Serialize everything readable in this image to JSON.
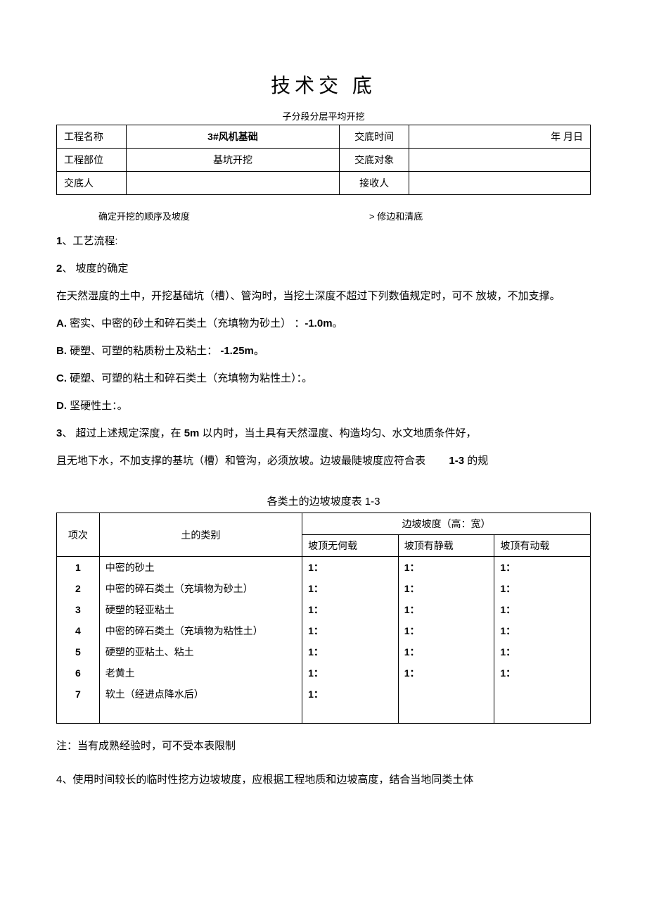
{
  "title": "技术交 底",
  "subtitle": "子分段分层平均开挖",
  "info": {
    "r1c1": "工程名称",
    "r1c2": "3#风机基础",
    "r1c3": "交底时间",
    "r1c4": "年 月日",
    "r2c1": "工程部位",
    "r2c2": "基坑开挖",
    "r2c3": "交底对象",
    "r2c4": "",
    "r3c1": "交底人",
    "r3c2": "",
    "r3c3": "接收人",
    "r3c4": ""
  },
  "smallrow": {
    "left": "确定开挖的顺序及坡度",
    "right": "> 修边和清底"
  },
  "body": {
    "p1a": "1",
    "p1b": "、工艺流程:",
    "p2a": "2",
    "p2b": "、  坡度的确定",
    "p3": "在天然湿度的土中，开挖基础坑（槽）、管沟时，当挖土深度不超过下列数值规定时，可不 放坡，不加支撑。",
    "pAa": "A.",
    "pAb": " 密实、中密的砂土和碎石类土（充填物为砂土） ：",
    "pAc": "-1.0m",
    "pAd": "。",
    "pBa": "B.",
    "pBb": " 硬塑、可塑的粘质粉土及粘土： ",
    "pBc": "-1.25m",
    "pBd": "。",
    "pCa": "C.",
    "pCb": " 硬塑、可塑的粘土和碎石类土（充填物为粘性土）：。",
    "pDa": "D.",
    "pDb": " 坚硬性土：。",
    "p4a": "3",
    "p4b": "、  超过上述规定深度，在 ",
    "p4c": "5m",
    "p4d": " 以内时，当土具有天然湿度、构造均匀、水文地质条件好，",
    "p5a": "且无地下水，不加支撑的基坑（槽）和管沟，必须放坡。边坡最陡坡度应符合表",
    "p5b": "1-3",
    "p5c": " 的规"
  },
  "table2title": "各类土的边坡坡度表 1-3",
  "table2": {
    "h_span": "边坡坡度（高：宽）",
    "h1": "项次",
    "h2": "土的类别",
    "h3": "坡顶无何载",
    "h4": "坡顶有静载",
    "h5": "坡顶有动载",
    "rows": [
      {
        "n": "1",
        "t": "中密的砂土",
        "a": "1：",
        "b": "1：",
        "c": "1："
      },
      {
        "n": "2",
        "t": "中密的碎石类土（充填物为砂土）",
        "a": "1：",
        "b": "1：",
        "c": "1："
      },
      {
        "n": "3",
        "t": "硬塑的轻亚粘土",
        "a": "1：",
        "b": "1：",
        "c": "1："
      },
      {
        "n": "4",
        "t": "中密的碎石类土（充填物为粘性土）",
        "a": "1：",
        "b": "1：",
        "c": "1："
      },
      {
        "n": "5",
        "t": "硬塑的亚粘土、粘土",
        "a": "1：",
        "b": "1：",
        "c": "1："
      },
      {
        "n": "6",
        "t": "老黄土",
        "a": "1：",
        "b": "1：",
        "c": "1："
      },
      {
        "n": "7",
        "t": "软土（经进点降水后）",
        "a": "1：",
        "b": "",
        "c": ""
      }
    ]
  },
  "note1": "注：当有成熟经验时，可不受本表限制",
  "note2a": "4",
  "note2b": "、使用时间较长的临时性挖方边坡坡度，应根据工程地质和边坡高度，结合当地同类土体"
}
